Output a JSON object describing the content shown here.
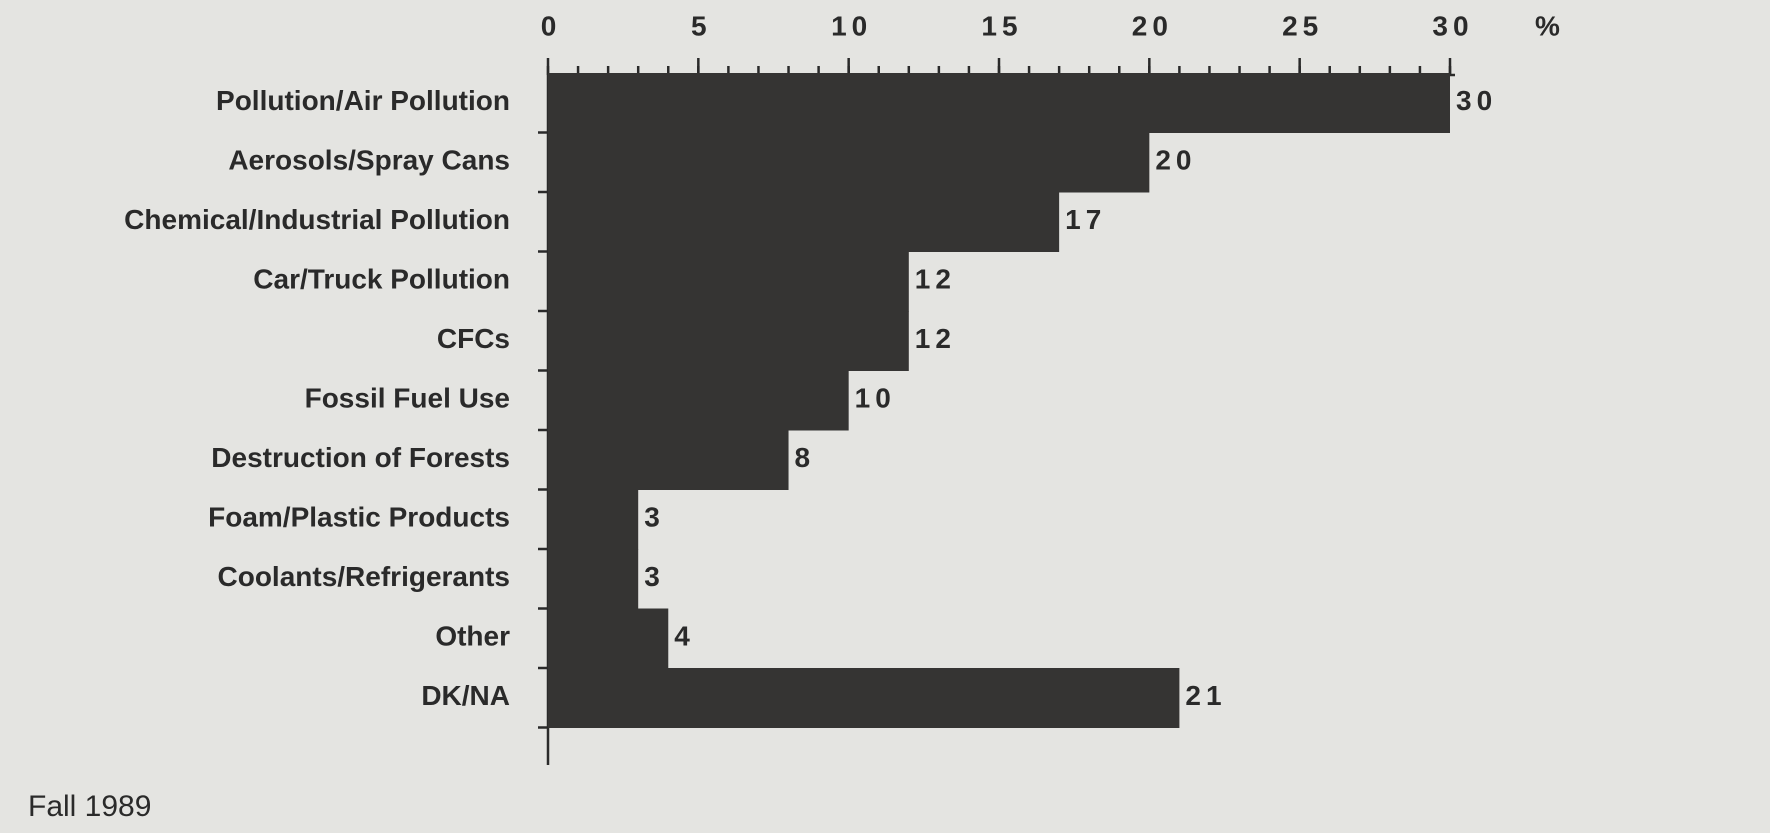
{
  "chart_data": {
    "type": "bar",
    "orientation": "horizontal",
    "categories": [
      "Pollution/Air Pollution",
      "Aerosols/Spray Cans",
      "Chemical/Industrial Pollution",
      "Car/Truck Pollution",
      "CFCs",
      "Fossil Fuel Use",
      "Destruction of Forests",
      "Foam/Plastic Products",
      "Coolants/Refrigerants",
      "Other",
      "DK/NA"
    ],
    "values": [
      30,
      20,
      17,
      12,
      12,
      10,
      8,
      3,
      3,
      4,
      21
    ],
    "color": "#353433",
    "xlim": [
      0,
      30
    ],
    "xticks": [
      0,
      5,
      10,
      15,
      20,
      25,
      30
    ],
    "xminor_ticks": [
      0,
      1,
      2,
      3,
      4,
      5,
      6,
      7,
      8,
      9,
      10,
      11,
      12,
      13,
      14,
      15,
      16,
      17,
      18,
      19,
      20,
      21,
      22,
      23,
      24,
      25,
      26,
      27,
      28,
      29,
      30
    ],
    "x_unit_label": "%",
    "annotation": "Fall 1989"
  }
}
